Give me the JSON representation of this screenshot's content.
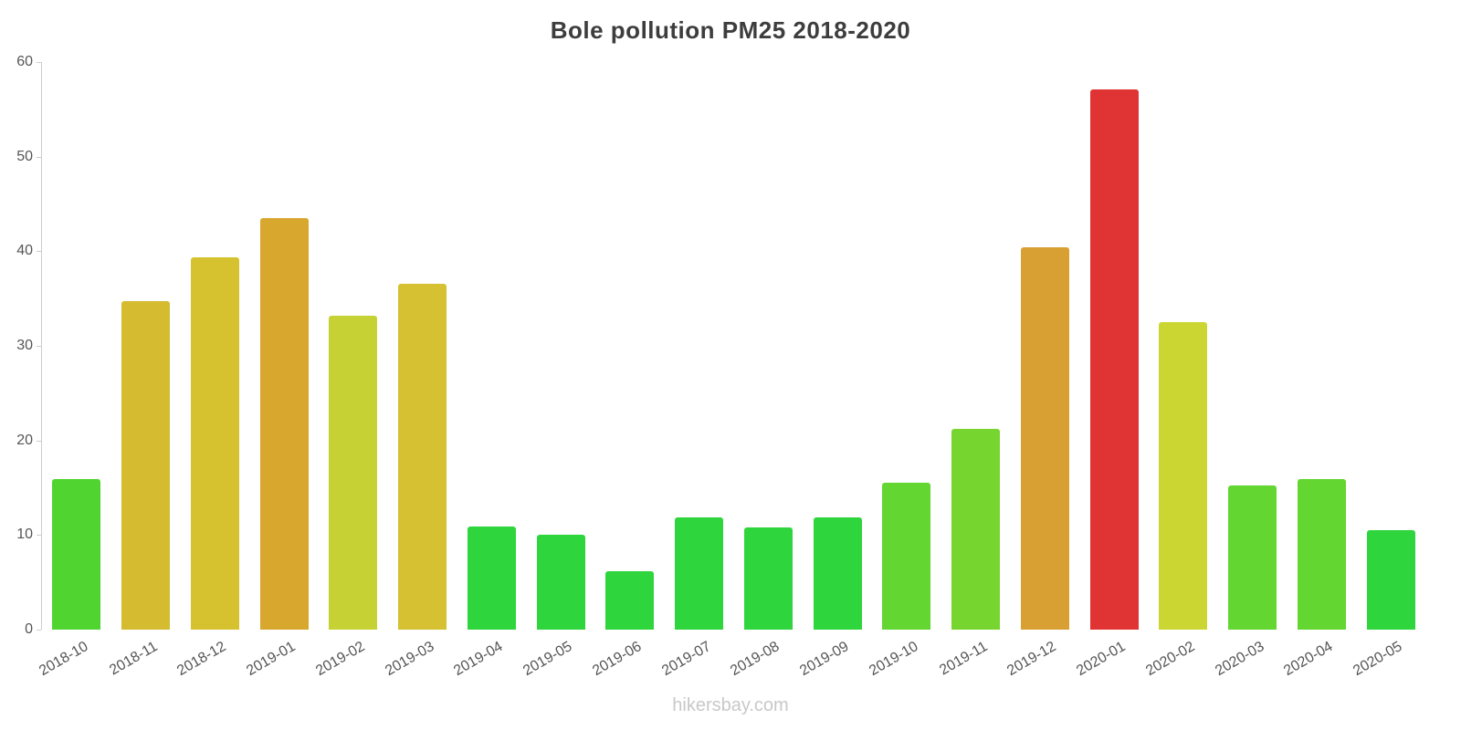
{
  "chart": {
    "title": "Bole pollution PM25 2018-2020",
    "footer": "hikersbay.com"
  },
  "chart_data": {
    "type": "bar",
    "title": "Bole pollution PM25 2018-2020",
    "xlabel": "",
    "ylabel": "",
    "ylim": [
      0,
      60
    ],
    "y_ticks": [
      0,
      10,
      20,
      30,
      40,
      50,
      60
    ],
    "grid": false,
    "legend": "none",
    "categories": [
      "2018-10",
      "2018-11",
      "2018-12",
      "2019-01",
      "2019-02",
      "2019-03",
      "2019-04",
      "2019-05",
      "2019-06",
      "2019-07",
      "2019-08",
      "2019-09",
      "2019-10",
      "2019-11",
      "2019-12",
      "2020-01",
      "2020-02",
      "2020-03",
      "2020-04",
      "2020-05"
    ],
    "values": [
      15.9,
      34.7,
      39.4,
      43.5,
      33.2,
      36.6,
      10.9,
      10.0,
      6.2,
      11.9,
      10.8,
      11.9,
      15.5,
      21.2,
      40.4,
      57.1,
      32.5,
      15.2,
      15.9,
      10.5
    ],
    "colors": [
      "#50d530",
      "#d4bb30",
      "#d6c22f",
      "#d8a72e",
      "#c6d233",
      "#d5c131",
      "#2fd53c",
      "#2fd53c",
      "#2fd53c",
      "#2fd53c",
      "#2fd53c",
      "#2fd53c",
      "#63d632",
      "#76d52f",
      "#d8a032",
      "#e03434",
      "#ccd633",
      "#63d632",
      "#63d632",
      "#2fd53c"
    ],
    "footer": "hikersbay.com"
  }
}
